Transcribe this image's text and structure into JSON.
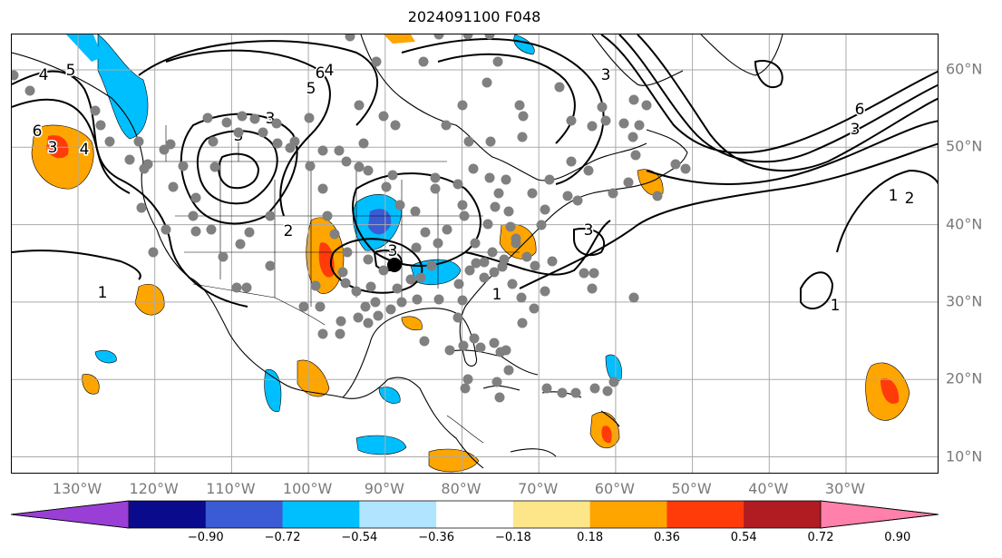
{
  "title": "2024091100 F048",
  "lon_labels": [
    {
      "text": "130°W",
      "lon": -130
    },
    {
      "text": "120°W",
      "lon": -120
    },
    {
      "text": "110°W",
      "lon": -110
    },
    {
      "text": "100°W",
      "lon": -100
    },
    {
      "text": "90°W",
      "lon": -90
    },
    {
      "text": "80°W",
      "lon": -80
    },
    {
      "text": "70°W",
      "lon": -70
    },
    {
      "text": "60°W",
      "lon": -60
    },
    {
      "text": "50°W",
      "lon": -50
    },
    {
      "text": "40°W",
      "lon": -40
    },
    {
      "text": "30°W",
      "lon": -30
    }
  ],
  "lat_labels": [
    {
      "text": "60°N",
      "lat": 60
    },
    {
      "text": "50°N",
      "lat": 50
    },
    {
      "text": "40°N",
      "lat": 40
    },
    {
      "text": "30°N",
      "lat": 30
    },
    {
      "text": "20°N",
      "lat": 20
    },
    {
      "text": "10°N",
      "lat": 10
    }
  ],
  "colorbar": {
    "ticks": [
      "−0.90",
      "−0.72",
      "−0.54",
      "−0.36",
      "−0.18",
      "0.18",
      "0.36",
      "0.54",
      "0.72",
      "0.90"
    ],
    "colors": [
      "#9a3fd6",
      "#0a0a8c",
      "#3a5bd4",
      "#00bfff",
      "#b0e4ff",
      "#ffffff",
      "#fde68a",
      "#ffa500",
      "#ff3b0a",
      "#b01c22",
      "#ff80aa"
    ]
  },
  "contour_labels": [
    "4",
    "5",
    "6",
    "3",
    "4",
    "6",
    "5",
    "4",
    "3",
    "3",
    "1",
    "2",
    "3",
    "1",
    "3",
    "6",
    "3",
    "1",
    "2",
    "3",
    "1"
  ],
  "marker_color": "#808080",
  "center_marker_color": "#000000"
}
